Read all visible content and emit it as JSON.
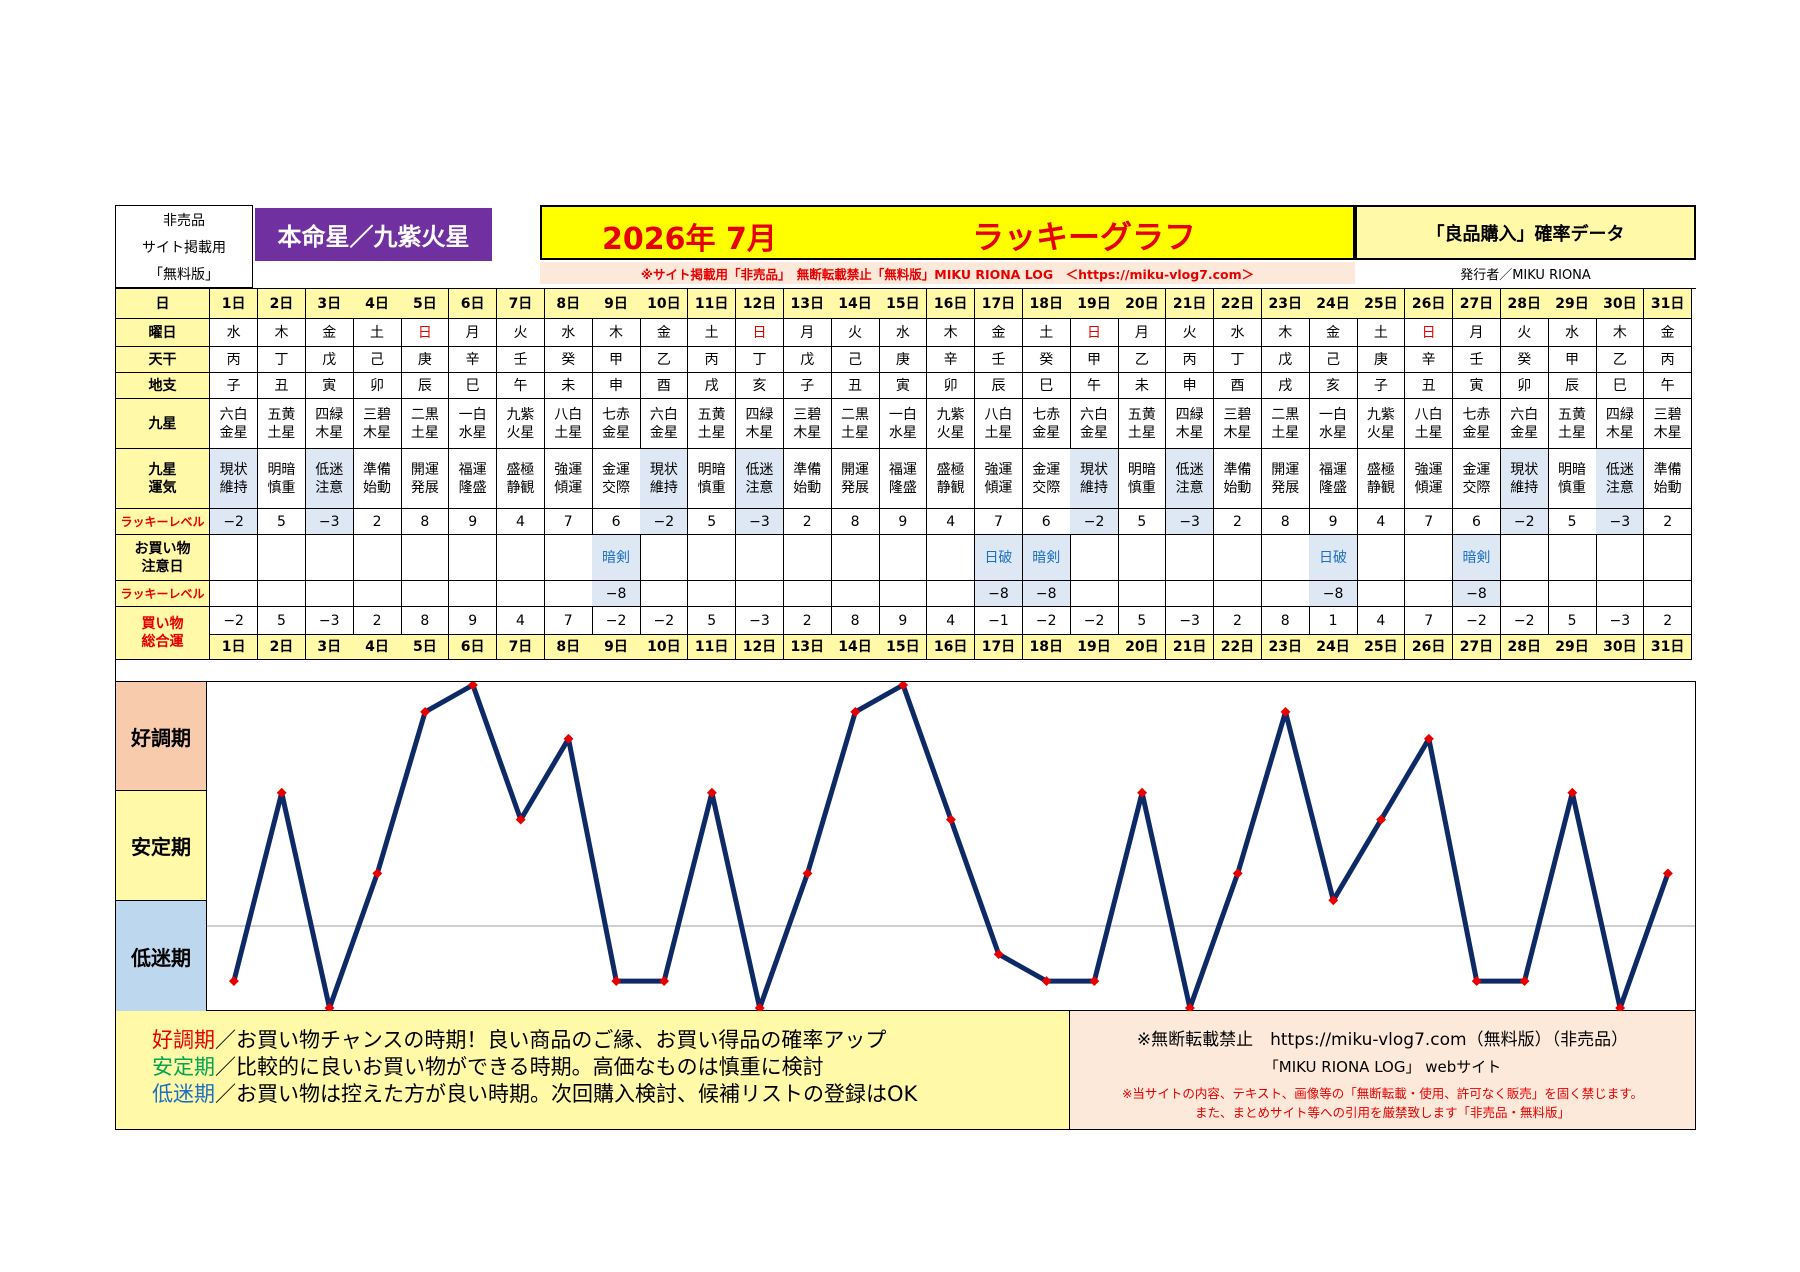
{
  "header": {
    "label_lines": [
      "非売品",
      "サイト掲載用",
      "「無料版」"
    ],
    "star_title": "本命星／九紫火星",
    "year_month": "2026年 7月",
    "graph_title": "ラッキーグラフ",
    "data_title": "「良品購入」確率データ",
    "notice": "※サイト掲載用「非売品」　無断転載禁止「無料版」MIKU RIONA LOG　＜https://miku-vlog7.com＞",
    "publisher": "発行者／MIKU RIONA"
  },
  "row_labels": {
    "day": "日",
    "weekday": "曜日",
    "stem": "天干",
    "branch": "地支",
    "star": "九星",
    "fortune": [
      "九星",
      "運気"
    ],
    "lucky": "ラッキーレベル",
    "caution": [
      "お買い物",
      "注意日"
    ],
    "lucky2": "ラッキーレベル",
    "total": [
      "買い物",
      "総合運"
    ]
  },
  "days": [
    "1日",
    "2日",
    "3日",
    "4日",
    "5日",
    "6日",
    "7日",
    "8日",
    "9日",
    "10日",
    "11日",
    "12日",
    "13日",
    "14日",
    "15日",
    "16日",
    "17日",
    "18日",
    "19日",
    "20日",
    "21日",
    "22日",
    "23日",
    "24日",
    "25日",
    "26日",
    "27日",
    "28日",
    "29日",
    "30日",
    "31日"
  ],
  "weekdays": [
    "水",
    "木",
    "金",
    "土",
    "日",
    "月",
    "火",
    "水",
    "木",
    "金",
    "土",
    "日",
    "月",
    "火",
    "水",
    "木",
    "金",
    "土",
    "日",
    "月",
    "火",
    "水",
    "木",
    "金",
    "土",
    "日",
    "月",
    "火",
    "水",
    "木",
    "金"
  ],
  "stems": [
    "丙",
    "丁",
    "戊",
    "己",
    "庚",
    "辛",
    "壬",
    "癸",
    "甲",
    "乙",
    "丙",
    "丁",
    "戊",
    "己",
    "庚",
    "辛",
    "壬",
    "癸",
    "甲",
    "乙",
    "丙",
    "丁",
    "戊",
    "己",
    "庚",
    "辛",
    "壬",
    "癸",
    "甲",
    "乙",
    "丙"
  ],
  "branches": [
    "子",
    "丑",
    "寅",
    "卯",
    "辰",
    "巳",
    "午",
    "未",
    "申",
    "酉",
    "戌",
    "亥",
    "子",
    "丑",
    "寅",
    "卯",
    "辰",
    "巳",
    "午",
    "未",
    "申",
    "酉",
    "戌",
    "亥",
    "子",
    "丑",
    "寅",
    "卯",
    "辰",
    "巳",
    "午"
  ],
  "stars": [
    [
      "六白",
      "金星"
    ],
    [
      "五黄",
      "土星"
    ],
    [
      "四緑",
      "木星"
    ],
    [
      "三碧",
      "木星"
    ],
    [
      "二黒",
      "土星"
    ],
    [
      "一白",
      "水星"
    ],
    [
      "九紫",
      "火星"
    ],
    [
      "八白",
      "土星"
    ],
    [
      "七赤",
      "金星"
    ],
    [
      "六白",
      "金星"
    ],
    [
      "五黄",
      "土星"
    ],
    [
      "四緑",
      "木星"
    ],
    [
      "三碧",
      "木星"
    ],
    [
      "二黒",
      "土星"
    ],
    [
      "一白",
      "水星"
    ],
    [
      "九紫",
      "火星"
    ],
    [
      "八白",
      "土星"
    ],
    [
      "七赤",
      "金星"
    ],
    [
      "六白",
      "金星"
    ],
    [
      "五黄",
      "土星"
    ],
    [
      "四緑",
      "木星"
    ],
    [
      "三碧",
      "木星"
    ],
    [
      "二黒",
      "土星"
    ],
    [
      "一白",
      "水星"
    ],
    [
      "九紫",
      "火星"
    ],
    [
      "八白",
      "土星"
    ],
    [
      "七赤",
      "金星"
    ],
    [
      "六白",
      "金星"
    ],
    [
      "五黄",
      "土星"
    ],
    [
      "四緑",
      "木星"
    ],
    [
      "三碧",
      "木星"
    ]
  ],
  "fortunes": [
    [
      "現状",
      "維持"
    ],
    [
      "明暗",
      "慎重"
    ],
    [
      "低迷",
      "注意"
    ],
    [
      "準備",
      "始動"
    ],
    [
      "開運",
      "発展"
    ],
    [
      "福運",
      "隆盛"
    ],
    [
      "盛極",
      "静観"
    ],
    [
      "強運",
      "傾運"
    ],
    [
      "金運",
      "交際"
    ],
    [
      "現状",
      "維持"
    ],
    [
      "明暗",
      "慎重"
    ],
    [
      "低迷",
      "注意"
    ],
    [
      "準備",
      "始動"
    ],
    [
      "開運",
      "発展"
    ],
    [
      "福運",
      "隆盛"
    ],
    [
      "盛極",
      "静観"
    ],
    [
      "強運",
      "傾運"
    ],
    [
      "金運",
      "交際"
    ],
    [
      "現状",
      "維持"
    ],
    [
      "明暗",
      "慎重"
    ],
    [
      "低迷",
      "注意"
    ],
    [
      "準備",
      "始動"
    ],
    [
      "開運",
      "発展"
    ],
    [
      "福運",
      "隆盛"
    ],
    [
      "盛極",
      "静観"
    ],
    [
      "強運",
      "傾運"
    ],
    [
      "金運",
      "交際"
    ],
    [
      "現状",
      "維持"
    ],
    [
      "明暗",
      "慎重"
    ],
    [
      "低迷",
      "注意"
    ],
    [
      "準備",
      "始動"
    ]
  ],
  "lucky_levels": [
    "−2",
    "5",
    "−3",
    "2",
    "8",
    "9",
    "4",
    "7",
    "6",
    "−2",
    "5",
    "−3",
    "2",
    "8",
    "9",
    "4",
    "7",
    "6",
    "−2",
    "5",
    "−3",
    "2",
    "8",
    "9",
    "4",
    "7",
    "6",
    "−2",
    "5",
    "−3",
    "2"
  ],
  "cautions": [
    "",
    "",
    "",
    "",
    "",
    "",
    "",
    "",
    "暗剣",
    "",
    "",
    "",
    "",
    "",
    "",
    "",
    "日破",
    "暗剣",
    "",
    "",
    "",
    "",
    "",
    "日破",
    "",
    "",
    "暗剣",
    "",
    "",
    "",
    ""
  ],
  "lucky_levels2": [
    "",
    "",
    "",
    "",
    "",
    "",
    "",
    "",
    "−8",
    "",
    "",
    "",
    "",
    "",
    "",
    "",
    "−8",
    "−8",
    "",
    "",
    "",
    "",
    "",
    "−8",
    "",
    "",
    "−8",
    "",
    "",
    "",
    ""
  ],
  "totals": [
    "−2",
    "5",
    "−3",
    "2",
    "8",
    "9",
    "4",
    "7",
    "−2",
    "−2",
    "5",
    "−3",
    "2",
    "8",
    "9",
    "4",
    "−1",
    "−2",
    "−2",
    "5",
    "−3",
    "2",
    "8",
    "1",
    "4",
    "7",
    "−2",
    "−2",
    "5",
    "−3",
    "2"
  ],
  "zones": [
    "好調期",
    "安定期",
    "低迷期"
  ],
  "legend": {
    "lines": [
      {
        "key": "好調期",
        "color": "#e60000",
        "text": "／お買い物チャンスの時期！良い商品のご縁、お買い得品の確率アップ"
      },
      {
        "key": "安定期",
        "color": "#00a650",
        "text": "／比較的に良いお買い物ができる時期。高価なものは慎重に検討"
      },
      {
        "key": "低迷期",
        "color": "#1d6fc4",
        "text": "／お買い物は控えた方が良い時期。次回購入検討、候補リストの登録はOK"
      }
    ]
  },
  "footer": {
    "line1": "※無断転載禁止　https://miku-vlog7.com（無料版）（非売品）",
    "line2": "「MIKU RIONA LOG」 webサイト",
    "line3": "※当サイトの内容、テキスト、画像等の「無断転載・使用、許可なく販売」を固く禁じます。",
    "line4": "また、まとめサイト等への引用を厳禁致します「非売品・無料版」"
  },
  "colors": {
    "yellow": "#fff9a8",
    "purple": "#7030a0",
    "line": "#0d2a66",
    "marker": "#e60000",
    "good_zone": "#f8cbad",
    "stable_zone": "#fff9a8",
    "low_zone": "#bdd7ee",
    "sunday": "#e60000"
  },
  "chart_data": {
    "type": "line",
    "x": [
      "1日",
      "2日",
      "3日",
      "4日",
      "5日",
      "6日",
      "7日",
      "8日",
      "9日",
      "10日",
      "11日",
      "12日",
      "13日",
      "14日",
      "15日",
      "16日",
      "17日",
      "18日",
      "19日",
      "20日",
      "21日",
      "22日",
      "23日",
      "24日",
      "25日",
      "26日",
      "27日",
      "28日",
      "29日",
      "30日",
      "31日"
    ],
    "y": [
      -2,
      5,
      -3,
      2,
      8,
      9,
      4,
      7,
      -2,
      -2,
      5,
      -3,
      2,
      8,
      9,
      4,
      -1,
      -2,
      -2,
      5,
      -3,
      2,
      8,
      1,
      4,
      7,
      -2,
      -2,
      5,
      -3,
      2
    ],
    "ylim": [
      -3,
      9
    ],
    "grid": false
  }
}
